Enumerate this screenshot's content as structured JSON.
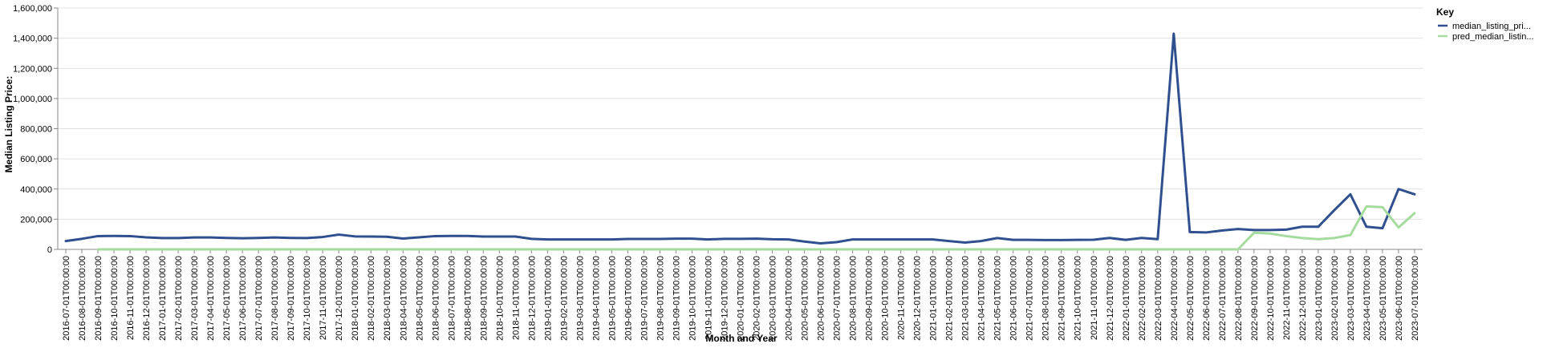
{
  "chart_data": {
    "type": "line",
    "xlabel": "Month and Year",
    "ylabel": "Median Listing Price:",
    "ylim": [
      0,
      1600000
    ],
    "yticks": [
      "0",
      "200,000",
      "400,000",
      "600,000",
      "800,000",
      "1,000,000",
      "1,200,000",
      "1,400,000",
      "1,600,000"
    ],
    "grid": true,
    "legend": {
      "title": "Key",
      "placement": "top-right"
    },
    "x": [
      "2016-07-01T00:00:00",
      "2016-08-01T00:00:00",
      "2016-09-01T00:00:00",
      "2016-10-01T00:00:00",
      "2016-11-01T00:00:00",
      "2016-12-01T00:00:00",
      "2017-01-01T00:00:00",
      "2017-02-01T00:00:00",
      "2017-03-01T00:00:00",
      "2017-04-01T00:00:00",
      "2017-05-01T00:00:00",
      "2017-06-01T00:00:00",
      "2017-07-01T00:00:00",
      "2017-08-01T00:00:00",
      "2017-09-01T00:00:00",
      "2017-10-01T00:00:00",
      "2017-11-01T00:00:00",
      "2017-12-01T00:00:00",
      "2018-01-01T00:00:00",
      "2018-02-01T00:00:00",
      "2018-03-01T00:00:00",
      "2018-04-01T00:00:00",
      "2018-05-01T00:00:00",
      "2018-06-01T00:00:00",
      "2018-07-01T00:00:00",
      "2018-08-01T00:00:00",
      "2018-09-01T00:00:00",
      "2018-10-01T00:00:00",
      "2018-11-01T00:00:00",
      "2018-12-01T00:00:00",
      "2019-01-01T00:00:00",
      "2019-02-01T00:00:00",
      "2019-03-01T00:00:00",
      "2019-04-01T00:00:00",
      "2019-05-01T00:00:00",
      "2019-06-01T00:00:00",
      "2019-07-01T00:00:00",
      "2019-08-01T00:00:00",
      "2019-09-01T00:00:00",
      "2019-10-01T00:00:00",
      "2019-11-01T00:00:00",
      "2019-12-01T00:00:00",
      "2020-01-01T00:00:00",
      "2020-02-01T00:00:00",
      "2020-03-01T00:00:00",
      "2020-04-01T00:00:00",
      "2020-05-01T00:00:00",
      "2020-06-01T00:00:00",
      "2020-07-01T00:00:00",
      "2020-08-01T00:00:00",
      "2020-09-01T00:00:00",
      "2020-10-01T00:00:00",
      "2020-11-01T00:00:00",
      "2020-12-01T00:00:00",
      "2021-01-01T00:00:00",
      "2021-02-01T00:00:00",
      "2021-03-01T00:00:00",
      "2021-04-01T00:00:00",
      "2021-05-01T00:00:00",
      "2021-06-01T00:00:00",
      "2021-07-01T00:00:00",
      "2021-08-01T00:00:00",
      "2021-09-01T00:00:00",
      "2021-10-01T00:00:00",
      "2021-11-01T00:00:00",
      "2021-12-01T00:00:00",
      "2022-01-01T00:00:00",
      "2022-02-01T00:00:00",
      "2022-03-01T00:00:00",
      "2022-04-01T00:00:00",
      "2022-05-01T00:00:00",
      "2022-06-01T00:00:00",
      "2022-07-01T00:00:00",
      "2022-08-01T00:00:00",
      "2022-09-01T00:00:00",
      "2022-10-01T00:00:00",
      "2022-11-01T00:00:00",
      "2022-12-01T00:00:00",
      "2023-01-01T00:00:00",
      "2023-02-01T00:00:00",
      "2023-03-01T00:00:00",
      "2023-04-01T00:00:00",
      "2023-05-01T00:00:00",
      "2023-06-01T00:00:00",
      "2023-07-01T00:00:00"
    ],
    "series": [
      {
        "name": "median_listing_pri...",
        "color": "#2f4f8f",
        "values": [
          55000,
          70000,
          88000,
          89000,
          88000,
          80000,
          75000,
          75000,
          79000,
          79000,
          76000,
          74000,
          76000,
          79000,
          76000,
          75000,
          82000,
          98000,
          86000,
          85000,
          84000,
          72000,
          80000,
          88000,
          89000,
          89000,
          85000,
          85000,
          85000,
          70000,
          66000,
          66000,
          66000,
          66000,
          66000,
          69000,
          69000,
          69000,
          71000,
          71000,
          66000,
          70000,
          70000,
          71000,
          67000,
          66000,
          52000,
          40000,
          48000,
          66000,
          66000,
          66000,
          66000,
          66000,
          66000,
          55000,
          45000,
          55000,
          75000,
          63000,
          63000,
          62000,
          62000,
          63000,
          64000,
          76000,
          63000,
          76000,
          68000,
          1430000,
          115000,
          112000,
          125000,
          135000,
          128000,
          128000,
          131000,
          150000,
          150000,
          260000,
          365000,
          150000,
          140000,
          400000,
          365000
        ]
      },
      {
        "name": "pred_median_listin...",
        "color": "#a6dba0",
        "values": [
          null,
          null,
          0,
          0,
          0,
          0,
          0,
          0,
          0,
          0,
          0,
          0,
          0,
          0,
          0,
          0,
          0,
          0,
          0,
          0,
          0,
          0,
          0,
          0,
          0,
          0,
          0,
          0,
          0,
          0,
          0,
          0,
          0,
          0,
          0,
          0,
          0,
          0,
          0,
          0,
          0,
          0,
          0,
          0,
          0,
          0,
          0,
          0,
          0,
          0,
          0,
          0,
          0,
          0,
          0,
          0,
          0,
          0,
          0,
          0,
          0,
          0,
          0,
          0,
          0,
          0,
          0,
          0,
          0,
          0,
          0,
          0,
          0,
          0,
          110000,
          105000,
          88000,
          75000,
          68000,
          75000,
          95000,
          285000,
          280000,
          145000,
          240000
        ]
      }
    ]
  }
}
